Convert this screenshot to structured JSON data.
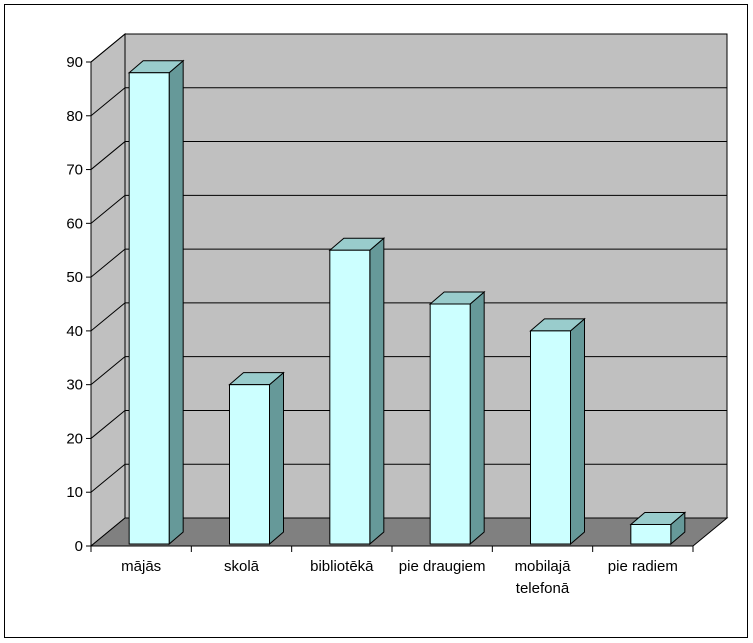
{
  "chart_data": {
    "type": "bar",
    "three_d": true,
    "categories": [
      "mājās",
      "skolā",
      "bibliotēkā",
      "pie draugiem",
      [
        "mobilajā",
        "telefonā"
      ],
      "pie radiem"
    ],
    "values": [
      88,
      30,
      55,
      45,
      40,
      4
    ],
    "ylim": [
      0,
      90
    ],
    "yticks": [
      0,
      10,
      20,
      30,
      40,
      50,
      60,
      70,
      80,
      90
    ],
    "grid": true,
    "legend": "none",
    "colors": {
      "bar_front": "#ccffff",
      "bar_top": "#99cccc",
      "bar_side": "#669999",
      "wall": "#c0c0c0",
      "floor": "#808080",
      "grid": "#000000"
    }
  }
}
